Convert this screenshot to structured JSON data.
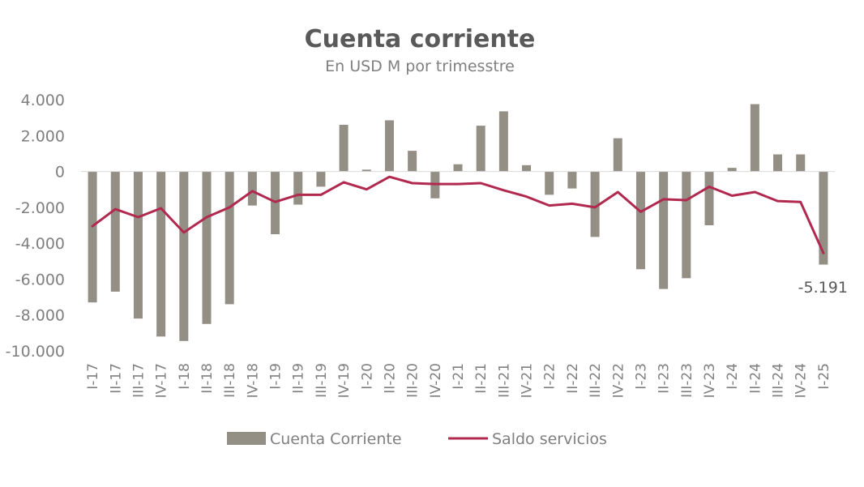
{
  "chart_data": {
    "type": "bar",
    "title": "Cuenta corriente",
    "subtitle": "En USD M por trimesstre",
    "xlabel": "",
    "ylabel": "",
    "ylim": [
      -10000,
      4000
    ],
    "yticks": [
      4000,
      2000,
      0,
      -2000,
      -4000,
      -6000,
      -8000,
      -10000
    ],
    "ytick_labels": [
      "4.000",
      "2.000",
      "0",
      "-2.000",
      "-4.000",
      "-6.000",
      "-8.000",
      "-10.000"
    ],
    "grid": false,
    "legend_position": "bottom",
    "categories": [
      "I-17",
      "II-17",
      "III-17",
      "IV-17",
      "I-18",
      "II-18",
      "III-18",
      "IV-18",
      "I-19",
      "II-19",
      "III-19",
      "IV-19",
      "I-20",
      "II-20",
      "III-20",
      "IV-20",
      "I-21",
      "II-21",
      "III-21",
      "IV-21",
      "I-22",
      "II-22",
      "III-22",
      "IV-22",
      "I-23",
      "II-23",
      "III-23",
      "IV-23",
      "I-24",
      "II-24",
      "III-24",
      "IV-24",
      "I-25"
    ],
    "series": [
      {
        "name": "Cuenta Corriente",
        "type": "bar",
        "color": "#948f85",
        "values": [
          -7300,
          -6700,
          -8200,
          -9200,
          -9450,
          -8500,
          -7400,
          -1900,
          -3500,
          -1850,
          -850,
          2600,
          100,
          2850,
          1150,
          -1500,
          400,
          2550,
          3350,
          350,
          -1300,
          -950,
          -3650,
          1850,
          -5450,
          -6550,
          -5950,
          -3000,
          200,
          3750,
          950,
          950,
          -5191
        ]
      },
      {
        "name": "Saldo servicios",
        "type": "line",
        "color": "#b1294f",
        "values": [
          -3050,
          -2100,
          -2550,
          -2050,
          -3400,
          -2550,
          -2000,
          -1100,
          -1700,
          -1300,
          -1300,
          -600,
          -1000,
          -300,
          -650,
          -700,
          -700,
          -650,
          -1050,
          -1400,
          -1900,
          -1800,
          -2000,
          -1150,
          -2250,
          -1550,
          -1600,
          -850,
          -1350,
          -1150,
          -1650,
          -1700,
          -4550
        ]
      }
    ],
    "annotations": [
      {
        "category": "I-25",
        "series": "Cuenta Corriente",
        "text": "-5.191"
      }
    ]
  }
}
